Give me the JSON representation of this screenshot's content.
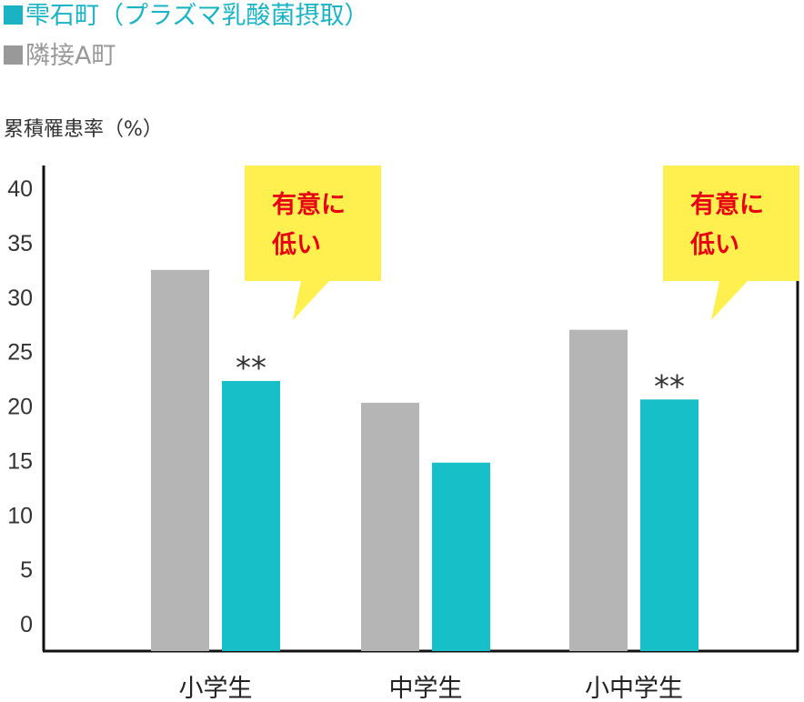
{
  "chart_data": {
    "type": "bar",
    "categories": [
      "小学生",
      "中学生",
      "小中学生"
    ],
    "series": [
      {
        "name": "隣接A町",
        "values": [
          32.5,
          20.3,
          27.0
        ],
        "color": "#b5b5b5",
        "legend_color": "#999999"
      },
      {
        "name": "雫石町（プラズマ乳酸菌摂取）",
        "values": [
          22.3,
          14.8,
          20.6
        ],
        "color": "#17bfc9",
        "legend_color": "#1ab3c4"
      }
    ],
    "legend_order": [
      1,
      0
    ],
    "ylabel": "累積罹患率（%）",
    "ylim": [
      0,
      40
    ],
    "yticks": [
      0,
      5,
      10,
      15,
      20,
      25,
      30,
      35,
      40
    ],
    "grid": false,
    "significance": [
      {
        "category_index": 0,
        "series_index": 1,
        "mark": "**"
      },
      {
        "category_index": 2,
        "series_index": 1,
        "mark": "**"
      }
    ],
    "callouts": [
      {
        "category_index": 0,
        "lines": [
          "有意に",
          "低い"
        ],
        "fill": "#fff04f",
        "text_color": "#e60012"
      },
      {
        "category_index": 2,
        "lines": [
          "有意に",
          "低い"
        ],
        "fill": "#fff04f",
        "text_color": "#e60012"
      }
    ]
  }
}
